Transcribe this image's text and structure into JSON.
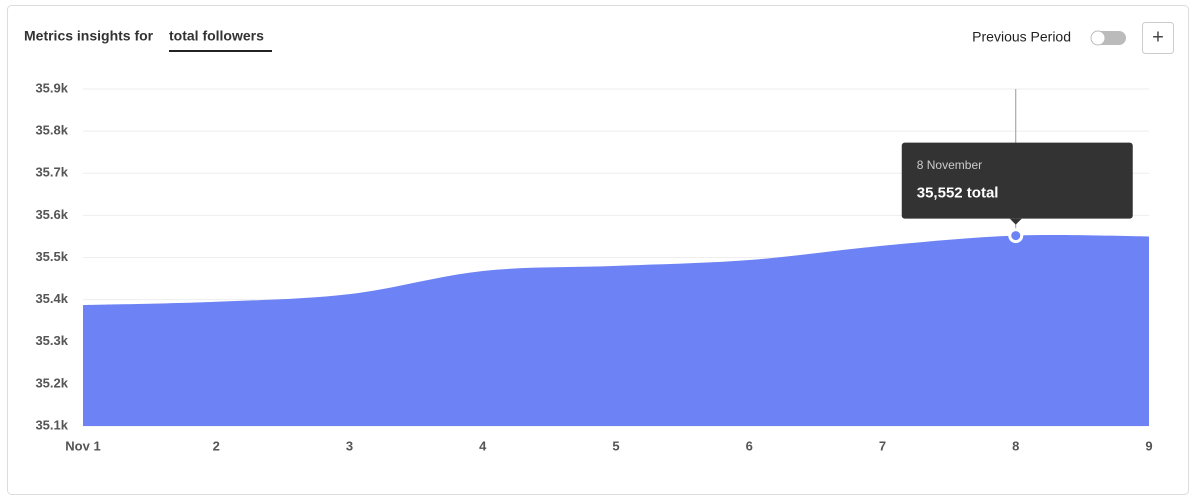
{
  "header": {
    "title": "Metrics insights for",
    "metric": "total followers",
    "toggle_label": "Previous Period",
    "add_button": "+"
  },
  "tooltip": {
    "date": "8 November",
    "text": "35,552 total"
  },
  "chart_data": {
    "type": "area",
    "color": "#6d83f5",
    "grid": true,
    "categories": [
      "Nov 1",
      "2",
      "3",
      "4",
      "5",
      "6",
      "7",
      "8",
      "9"
    ],
    "values": [
      35387,
      35395,
      35413,
      35468,
      35480,
      35494,
      35528,
      35552,
      35550
    ],
    "ylim": [
      35100,
      35900
    ],
    "yticks": [
      {
        "value": 35100,
        "label": "35.1k"
      },
      {
        "value": 35200,
        "label": "35.2k"
      },
      {
        "value": 35300,
        "label": "35.3k"
      },
      {
        "value": 35400,
        "label": "35.4k"
      },
      {
        "value": 35500,
        "label": "35.5k"
      },
      {
        "value": 35600,
        "label": "35.6k"
      },
      {
        "value": 35700,
        "label": "35.7k"
      },
      {
        "value": 35800,
        "label": "35.8k"
      },
      {
        "value": 35900,
        "label": "35.9k"
      }
    ]
  }
}
